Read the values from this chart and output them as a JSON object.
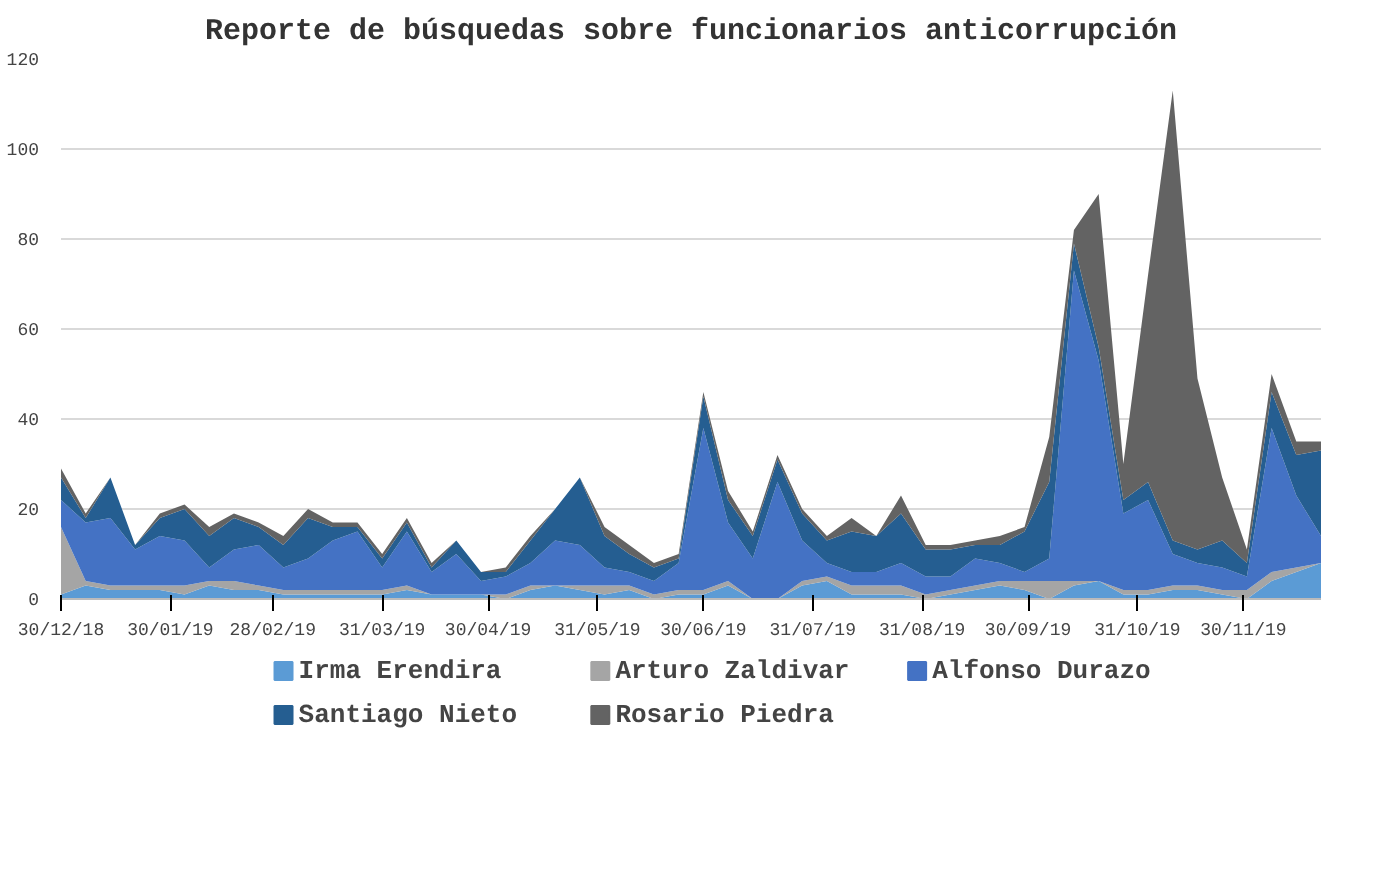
{
  "chart_data": {
    "type": "area",
    "stacked": true,
    "title": "Reporte de búsquedas sobre funcionarios anticorrupción",
    "x": [
      "2018-12-30",
      "2019-01-06",
      "2019-01-13",
      "2019-01-20",
      "2019-01-27",
      "2019-02-03",
      "2019-02-10",
      "2019-02-17",
      "2019-02-24",
      "2019-03-03",
      "2019-03-10",
      "2019-03-17",
      "2019-03-24",
      "2019-03-31",
      "2019-04-07",
      "2019-04-14",
      "2019-04-21",
      "2019-04-28",
      "2019-05-05",
      "2019-05-12",
      "2019-05-19",
      "2019-05-26",
      "2019-06-02",
      "2019-06-09",
      "2019-06-16",
      "2019-06-23",
      "2019-06-30",
      "2019-07-07",
      "2019-07-14",
      "2019-07-21",
      "2019-07-28",
      "2019-08-04",
      "2019-08-11",
      "2019-08-18",
      "2019-08-25",
      "2019-09-01",
      "2019-09-08",
      "2019-09-15",
      "2019-09-22",
      "2019-09-29",
      "2019-10-06",
      "2019-10-13",
      "2019-10-20",
      "2019-10-27",
      "2019-11-03",
      "2019-11-10",
      "2019-11-17",
      "2019-11-24",
      "2019-12-01",
      "2019-12-08",
      "2019-12-15",
      "2019-12-22"
    ],
    "series": [
      {
        "name": "Irma Erendira",
        "color": "#5b9bd5",
        "values": [
          1,
          3,
          2,
          2,
          2,
          1,
          3,
          2,
          2,
          1,
          1,
          1,
          1,
          1,
          2,
          1,
          1,
          1,
          0,
          2,
          3,
          2,
          1,
          2,
          0,
          1,
          1,
          3,
          0,
          0,
          3,
          4,
          1,
          1,
          1,
          0,
          1,
          2,
          3,
          2,
          0,
          3,
          4,
          1,
          1,
          2,
          2,
          1,
          0,
          4,
          6,
          8
        ]
      },
      {
        "name": "Arturo Zaldivar",
        "color": "#a5a5a5",
        "values": [
          15,
          1,
          1,
          1,
          1,
          2,
          1,
          2,
          1,
          1,
          1,
          1,
          1,
          1,
          1,
          0,
          0,
          0,
          1,
          1,
          0,
          1,
          2,
          1,
          1,
          1,
          1,
          1,
          0,
          0,
          1,
          1,
          2,
          2,
          2,
          1,
          1,
          1,
          1,
          2,
          4,
          1,
          0,
          1,
          1,
          1,
          1,
          1,
          2,
          2,
          1,
          0
        ]
      },
      {
        "name": "Alfonso Durazo",
        "color": "#4472c4",
        "values": [
          6,
          13,
          15,
          8,
          11,
          10,
          3,
          7,
          9,
          5,
          7,
          11,
          13,
          5,
          12,
          5,
          9,
          3,
          4,
          5,
          10,
          9,
          4,
          3,
          3,
          6,
          36,
          13,
          9,
          26,
          9,
          3,
          3,
          3,
          5,
          4,
          3,
          6,
          4,
          2,
          5,
          69,
          49,
          17,
          20,
          7,
          5,
          5,
          3,
          32,
          16,
          6
        ]
      },
      {
        "name": "Santiago Nieto",
        "color": "#255e91",
        "values": [
          5,
          1,
          9,
          1,
          4,
          7,
          7,
          7,
          4,
          5,
          9,
          3,
          1,
          2,
          2,
          1,
          3,
          2,
          1,
          5,
          7,
          15,
          7,
          4,
          3,
          1,
          7,
          5,
          5,
          5,
          6,
          5,
          9,
          8,
          11,
          6,
          6,
          3,
          4,
          9,
          17,
          6,
          3,
          3,
          4,
          3,
          3,
          6,
          3,
          8,
          9,
          19
        ]
      },
      {
        "name": "Rosario Piedra",
        "color": "#636363",
        "values": [
          2,
          1,
          0,
          0,
          1,
          1,
          2,
          1,
          1,
          2,
          2,
          1,
          1,
          1,
          1,
          1,
          0,
          0,
          1,
          1,
          0,
          0,
          2,
          2,
          1,
          1,
          1,
          2,
          1,
          1,
          1,
          1,
          3,
          0,
          4,
          1,
          1,
          1,
          2,
          1,
          10,
          3,
          34,
          8,
          46,
          100,
          38,
          14,
          3,
          4,
          3,
          2
        ]
      }
    ],
    "ylim": [
      0,
      120
    ],
    "yticks": [
      0,
      20,
      40,
      60,
      80,
      100,
      120
    ],
    "xlim": [
      "2018-12-30",
      "2019-12-22"
    ],
    "xticks": [
      {
        "value": "2018-12-30",
        "label": "30/12/18"
      },
      {
        "value": "2019-01-30",
        "label": "30/01/19"
      },
      {
        "value": "2019-02-28",
        "label": "28/02/19"
      },
      {
        "value": "2019-03-31",
        "label": "31/03/19"
      },
      {
        "value": "2019-04-30",
        "label": "30/04/19"
      },
      {
        "value": "2019-05-31",
        "label": "31/05/19"
      },
      {
        "value": "2019-06-30",
        "label": "30/06/19"
      },
      {
        "value": "2019-07-31",
        "label": "31/07/19"
      },
      {
        "value": "2019-08-31",
        "label": "31/08/19"
      },
      {
        "value": "2019-09-30",
        "label": "30/09/19"
      },
      {
        "value": "2019-10-31",
        "label": "31/10/19"
      },
      {
        "value": "2019-11-30",
        "label": "30/11/19"
      }
    ],
    "grid": "y",
    "legend": "bottom"
  }
}
